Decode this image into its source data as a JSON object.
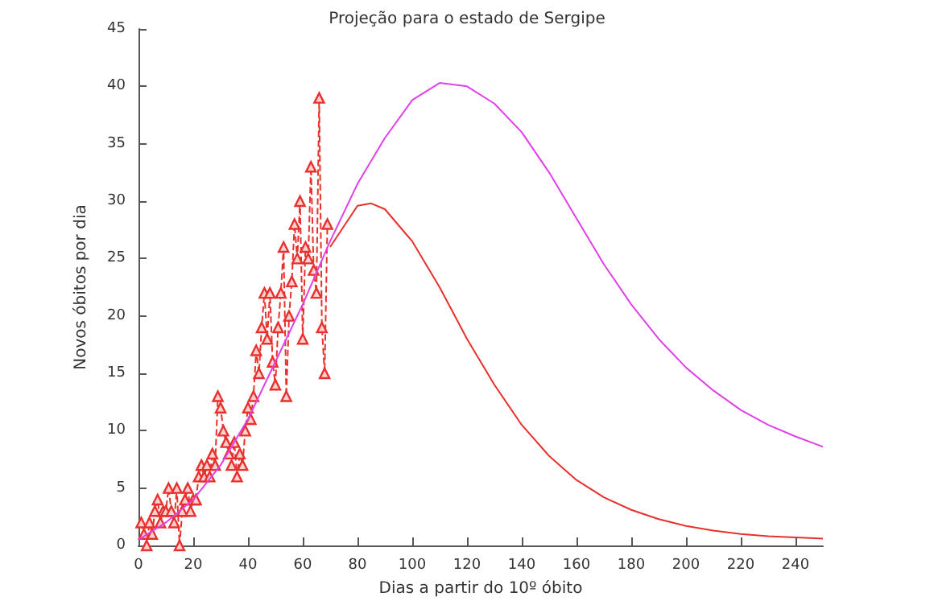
{
  "chart_data": {
    "type": "line",
    "title": "Projeção para o estado de Sergipe",
    "xlabel": "Dias a partir do 10º óbito",
    "ylabel": "Novos óbitos por dia",
    "xlim": [
      0,
      250
    ],
    "xticks": [
      0,
      20,
      40,
      60,
      80,
      100,
      120,
      140,
      160,
      180,
      200,
      220,
      240
    ],
    "ylim": [
      0,
      45
    ],
    "yticks": [
      0,
      5,
      10,
      15,
      20,
      25,
      30,
      35,
      40,
      45
    ],
    "grid": false,
    "series": [
      {
        "color": "#e8302c",
        "marker": "triangle",
        "line_style": "dashed",
        "x": [
          1,
          2,
          3,
          4,
          5,
          6,
          7,
          8,
          9,
          10,
          11,
          12,
          13,
          14,
          15,
          16,
          17,
          18,
          19,
          20,
          21,
          22,
          23,
          24,
          25,
          26,
          27,
          28,
          29,
          30,
          31,
          32,
          33,
          34,
          35,
          36,
          37,
          38,
          39,
          40,
          41,
          42,
          43,
          44,
          45,
          46,
          47,
          48,
          49,
          50,
          51,
          52,
          53,
          54,
          55,
          56,
          57,
          58,
          59,
          60,
          61,
          62,
          63,
          64,
          65,
          66,
          67,
          68,
          69
        ],
        "values": [
          2,
          1,
          0,
          2,
          1,
          3,
          4,
          2,
          3,
          3,
          5,
          3,
          2,
          5,
          0,
          3,
          4,
          5,
          3,
          4,
          4,
          6,
          7,
          6,
          7,
          6,
          8,
          7,
          13,
          12,
          10,
          9,
          8,
          7,
          9,
          6,
          8,
          7,
          10,
          12,
          11,
          13,
          17,
          15,
          19,
          22,
          18,
          22,
          16,
          14,
          19,
          22,
          26,
          13,
          20,
          23,
          28,
          25,
          30,
          18,
          26,
          25,
          33,
          24,
          22,
          39,
          19,
          15,
          28
        ]
      },
      {
        "color": "#e8302c",
        "marker": "none",
        "line_style": "solid",
        "x": [
          70,
          80,
          85,
          90,
          100,
          110,
          120,
          130,
          140,
          150,
          160,
          170,
          180,
          190,
          200,
          210,
          220,
          230,
          240,
          250
        ],
        "values": [
          26,
          29.6,
          29.8,
          29.3,
          26.5,
          22.5,
          18,
          14,
          10.5,
          7.8,
          5.7,
          4.2,
          3.1,
          2.3,
          1.7,
          1.3,
          1.0,
          0.8,
          0.7,
          0.6
        ]
      },
      {
        "color": "#e040e8",
        "marker": "none",
        "line_style": "solid",
        "x": [
          0,
          10,
          20,
          30,
          40,
          50,
          60,
          70,
          80,
          90,
          100,
          110,
          120,
          130,
          140,
          150,
          160,
          170,
          180,
          190,
          200,
          210,
          220,
          230,
          240,
          250
        ],
        "values": [
          0.5,
          2,
          4,
          7,
          11,
          16,
          21,
          26.5,
          31.5,
          35.5,
          38.8,
          40.3,
          40,
          38.5,
          36,
          32.5,
          28.5,
          24.5,
          21,
          18,
          15.5,
          13.5,
          11.8,
          10.5,
          9.5,
          8.6
        ]
      }
    ]
  }
}
